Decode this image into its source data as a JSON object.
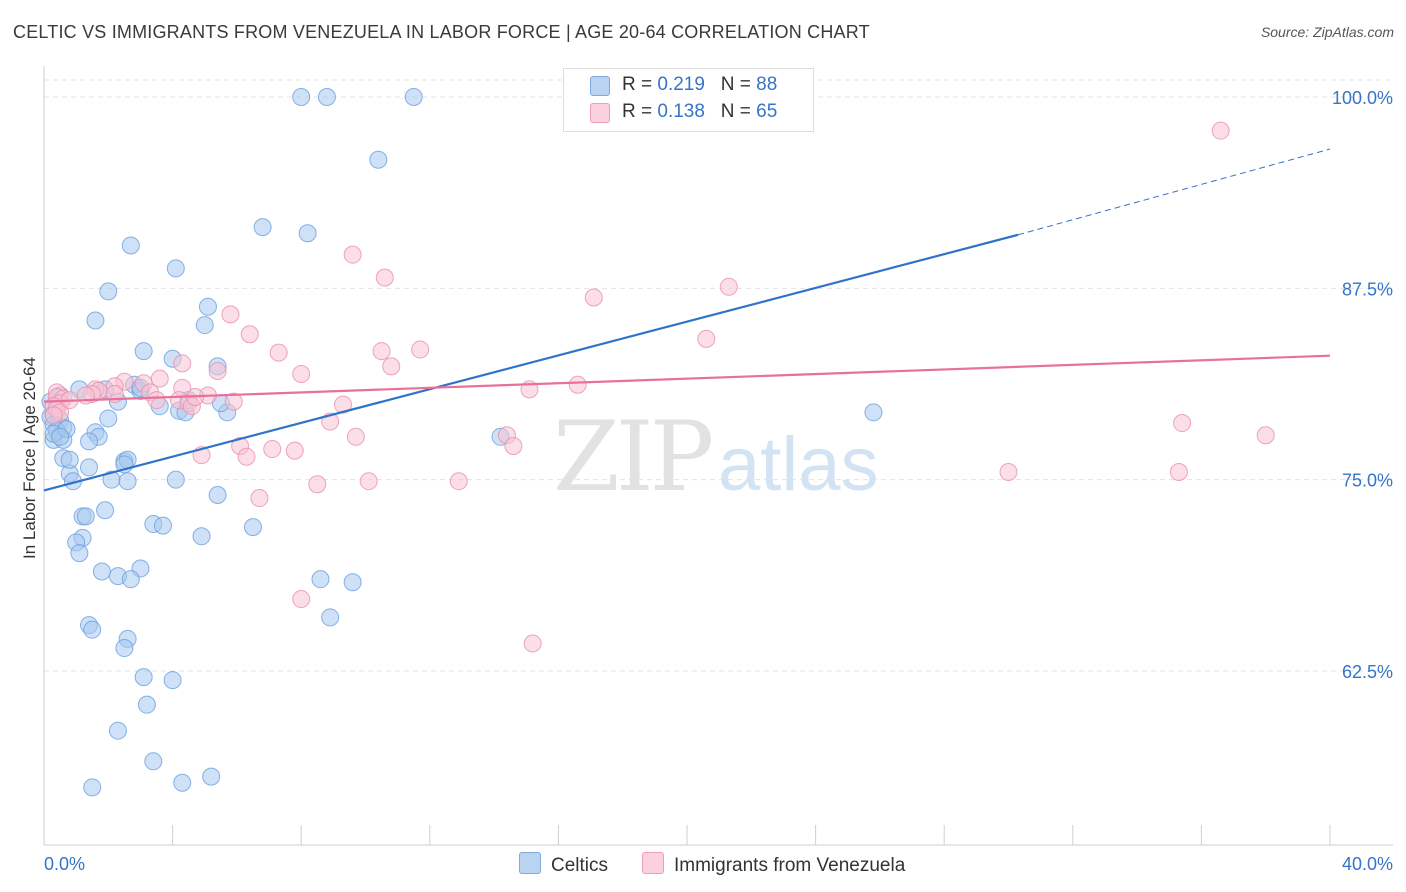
{
  "title": "CELTIC VS IMMIGRANTS FROM VENEZUELA IN LABOR FORCE | AGE 20-64 CORRELATION CHART",
  "source": "Source: ZipAtlas.com",
  "watermark": {
    "zip": "ZIP",
    "atlas": "atlas"
  },
  "legend_top": [
    {
      "r_label": "R = ",
      "r_value": "0.219",
      "n_label": "N = ",
      "n_value": "88"
    },
    {
      "r_label": "R = ",
      "r_value": "0.138",
      "n_label": "N = ",
      "n_value": "65"
    }
  ],
  "legend_bottom": [
    "Celtics",
    "Immigrants from Venezuela"
  ],
  "colors": {
    "blue_fill": "#a8c8ee",
    "blue_stroke": "#6a9fe0",
    "blue_line": "#2f74c9",
    "pink_fill": "#f7c3d4",
    "pink_stroke": "#ea8fae",
    "pink_line": "#e8709a",
    "tick_text": "#3574c8",
    "grid": "#e3e3e3"
  },
  "chart_data": {
    "type": "scatter",
    "title": "CELTIC VS IMMIGRANTS FROM VENEZUELA IN LABOR FORCE | AGE 20-64 CORRELATION CHART",
    "xlabel": "",
    "ylabel": "In Labor Force | Age 20-64",
    "xlim": [
      0,
      40
    ],
    "ylim": [
      52.5,
      101.2
    ],
    "x_tick_labels": [
      "0.0%",
      "40.0%"
    ],
    "y_ticks": [
      62.5,
      75.0,
      87.5,
      100.0
    ],
    "y_tick_labels": [
      "62.5%",
      "75.0%",
      "87.5%",
      "100.0%"
    ],
    "grid": true,
    "legend_position": "top-center",
    "series": [
      {
        "name": "Celtics",
        "color": "#a8c8ee",
        "trend": {
          "x": [
            0,
            30.3,
            40
          ],
          "y": [
            74.3,
            91.0,
            96.6
          ],
          "solid_until": 30.3
        },
        "points": [
          [
            8.0,
            100.0
          ],
          [
            8.8,
            100.0
          ],
          [
            11.5,
            100.0
          ],
          [
            10.4,
            95.9
          ],
          [
            6.8,
            91.5
          ],
          [
            8.2,
            91.1
          ],
          [
            2.7,
            90.3
          ],
          [
            4.1,
            88.8
          ],
          [
            2.0,
            87.3
          ],
          [
            5.1,
            86.3
          ],
          [
            1.6,
            85.4
          ],
          [
            5.0,
            85.1
          ],
          [
            3.1,
            83.4
          ],
          [
            4.0,
            82.9
          ],
          [
            5.4,
            82.4
          ],
          [
            2.8,
            81.2
          ],
          [
            1.1,
            80.9
          ],
          [
            3.0,
            80.8
          ],
          [
            2.3,
            80.1
          ],
          [
            0.4,
            79.9
          ],
          [
            4.2,
            79.5
          ],
          [
            4.4,
            79.4
          ],
          [
            5.7,
            79.4
          ],
          [
            0.3,
            79.3
          ],
          [
            0.2,
            79.1
          ],
          [
            2.0,
            79.0
          ],
          [
            0.5,
            78.9
          ],
          [
            0.3,
            78.6
          ],
          [
            0.6,
            78.4
          ],
          [
            1.6,
            78.1
          ],
          [
            1.7,
            77.8
          ],
          [
            14.2,
            77.8
          ],
          [
            25.8,
            79.4
          ],
          [
            0.3,
            77.6
          ],
          [
            0.6,
            77.6
          ],
          [
            1.4,
            77.5
          ],
          [
            0.4,
            78.2
          ],
          [
            0.6,
            76.4
          ],
          [
            2.5,
            76.2
          ],
          [
            2.6,
            76.3
          ],
          [
            1.4,
            75.8
          ],
          [
            0.8,
            75.4
          ],
          [
            2.1,
            75.0
          ],
          [
            2.6,
            74.9
          ],
          [
            0.9,
            74.9
          ],
          [
            4.1,
            75.0
          ],
          [
            5.4,
            74.0
          ],
          [
            1.9,
            73.0
          ],
          [
            1.2,
            72.6
          ],
          [
            1.3,
            72.6
          ],
          [
            3.4,
            72.1
          ],
          [
            3.7,
            72.0
          ],
          [
            6.5,
            71.9
          ],
          [
            4.9,
            71.3
          ],
          [
            1.2,
            71.2
          ],
          [
            1.0,
            70.9
          ],
          [
            1.1,
            70.2
          ],
          [
            1.8,
            69.0
          ],
          [
            3.0,
            69.2
          ],
          [
            2.3,
            68.7
          ],
          [
            2.7,
            68.5
          ],
          [
            8.6,
            68.5
          ],
          [
            9.6,
            68.3
          ],
          [
            8.9,
            66.0
          ],
          [
            1.4,
            65.5
          ],
          [
            1.5,
            65.2
          ],
          [
            2.6,
            64.6
          ],
          [
            2.5,
            64.0
          ],
          [
            3.1,
            62.1
          ],
          [
            4.0,
            61.9
          ],
          [
            3.2,
            60.3
          ],
          [
            2.3,
            58.6
          ],
          [
            3.4,
            56.6
          ],
          [
            1.5,
            54.9
          ],
          [
            4.3,
            55.2
          ],
          [
            5.2,
            55.6
          ],
          [
            0.3,
            78.0
          ],
          [
            0.7,
            78.3
          ],
          [
            1.9,
            80.9
          ],
          [
            3.0,
            81.0
          ],
          [
            5.5,
            80.0
          ],
          [
            0.2,
            80.1
          ],
          [
            0.5,
            77.8
          ],
          [
            2.5,
            76.0
          ],
          [
            0.8,
            76.3
          ],
          [
            3.6,
            79.8
          ],
          [
            4.5,
            80.2
          ],
          [
            0.5,
            80.5
          ]
        ]
      },
      {
        "name": "Immigrants from Venezuela",
        "color": "#f7c3d4",
        "trend": {
          "x": [
            0,
            40
          ],
          "y": [
            80.1,
            83.1
          ]
        },
        "points": [
          [
            22.3,
            100.0
          ],
          [
            36.6,
            97.8
          ],
          [
            9.6,
            89.7
          ],
          [
            10.6,
            88.2
          ],
          [
            21.3,
            87.6
          ],
          [
            17.1,
            86.9
          ],
          [
            5.8,
            85.8
          ],
          [
            6.4,
            84.5
          ],
          [
            7.3,
            83.3
          ],
          [
            10.5,
            83.4
          ],
          [
            11.7,
            83.5
          ],
          [
            20.6,
            84.2
          ],
          [
            10.8,
            82.4
          ],
          [
            4.3,
            82.6
          ],
          [
            5.4,
            82.1
          ],
          [
            8.0,
            81.9
          ],
          [
            3.6,
            81.6
          ],
          [
            2.5,
            81.4
          ],
          [
            2.2,
            81.1
          ],
          [
            1.6,
            80.9
          ],
          [
            1.7,
            80.8
          ],
          [
            1.5,
            80.6
          ],
          [
            3.1,
            81.3
          ],
          [
            4.3,
            81.0
          ],
          [
            15.1,
            80.9
          ],
          [
            16.6,
            81.2
          ],
          [
            0.4,
            80.7
          ],
          [
            0.4,
            80.4
          ],
          [
            0.6,
            80.3
          ],
          [
            0.5,
            80.0
          ],
          [
            0.3,
            79.8
          ],
          [
            0.4,
            79.6
          ],
          [
            0.5,
            79.4
          ],
          [
            0.3,
            79.2
          ],
          [
            4.2,
            80.2
          ],
          [
            4.5,
            80.0
          ],
          [
            4.6,
            79.8
          ],
          [
            5.1,
            80.5
          ],
          [
            5.9,
            80.1
          ],
          [
            9.3,
            79.9
          ],
          [
            8.9,
            78.8
          ],
          [
            9.7,
            77.8
          ],
          [
            14.4,
            77.9
          ],
          [
            14.6,
            77.2
          ],
          [
            6.1,
            77.2
          ],
          [
            6.3,
            76.5
          ],
          [
            7.1,
            77.0
          ],
          [
            7.8,
            76.9
          ],
          [
            4.9,
            76.6
          ],
          [
            8.5,
            74.7
          ],
          [
            10.1,
            74.9
          ],
          [
            12.9,
            74.9
          ],
          [
            6.7,
            73.8
          ],
          [
            30.0,
            75.5
          ],
          [
            35.3,
            75.5
          ],
          [
            35.4,
            78.7
          ],
          [
            38.0,
            77.9
          ],
          [
            8.0,
            67.2
          ],
          [
            15.2,
            64.3
          ],
          [
            3.3,
            80.7
          ],
          [
            0.8,
            80.2
          ],
          [
            1.3,
            80.5
          ],
          [
            2.2,
            80.6
          ],
          [
            3.5,
            80.2
          ],
          [
            4.7,
            80.4
          ]
        ]
      }
    ]
  }
}
